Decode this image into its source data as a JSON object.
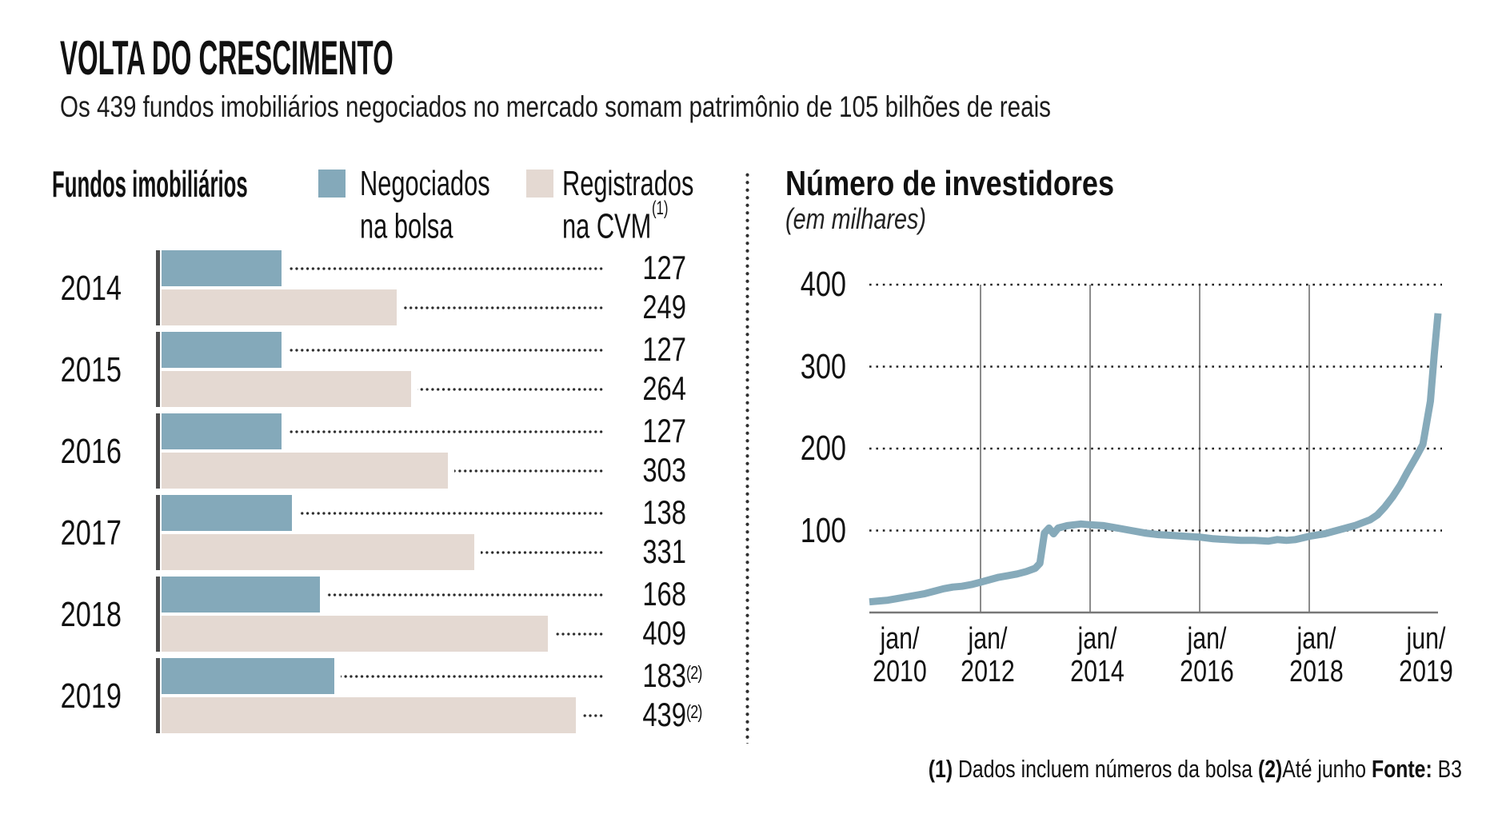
{
  "title": "VOLTA DO CRESCIMENTO",
  "subtitle": "Os 439 fundos imobiliários negociados no mercado somam patrimônio de 105 bilhões de reais",
  "left_panel": {
    "heading": "Fundos imobiliários",
    "legend": [
      {
        "line1": "Negociados",
        "line2": "na bolsa",
        "sup": "",
        "color": "#84a9ba"
      },
      {
        "line1": "Registrados",
        "line2": "na CVM",
        "sup": "(1)",
        "color": "#e4d9d2"
      }
    ]
  },
  "right_panel": {
    "heading": "Número de investidores",
    "unit_note": "(em milhares)",
    "y_tick_labels": [
      "400",
      "300",
      "200",
      "100"
    ]
  },
  "footnote": {
    "segments": [
      {
        "text": "(1)",
        "bold": true
      },
      {
        "text": " Dados incluem números da bolsa ",
        "bold": false
      },
      {
        "text": "(2)",
        "bold": true
      },
      {
        "text": "Até junho ",
        "bold": false
      },
      {
        "text": "Fonte:",
        "bold": true
      },
      {
        "text": " B3",
        "bold": false
      }
    ]
  },
  "chart_data": [
    {
      "type": "bar",
      "orientation": "horizontal",
      "title": "Fundos imobiliários",
      "categories": [
        "2014",
        "2015",
        "2016",
        "2017",
        "2018",
        "2019"
      ],
      "series": [
        {
          "name": "Negociados na bolsa",
          "color": "#84a9ba",
          "values": [
            127,
            127,
            127,
            138,
            168,
            183
          ],
          "superscripts": [
            "",
            "",
            "",
            "",
            "",
            "(2)"
          ]
        },
        {
          "name": "Registrados na CVM (1)",
          "color": "#e4d9d2",
          "values": [
            249,
            264,
            303,
            331,
            409,
            439
          ],
          "superscripts": [
            "",
            "",
            "",
            "",
            "",
            "(2)"
          ]
        }
      ],
      "xlim": [
        0,
        439
      ],
      "value_labels_shown": true,
      "grid": "dotted leader lines from bar end to value label"
    },
    {
      "type": "line",
      "title": "Número de investidores",
      "ylabel": "em milhares",
      "x_unit": "months since jan/2010",
      "x_tick_labels": [
        [
          "jan/",
          "2010"
        ],
        [
          "jan/",
          "2012"
        ],
        [
          "jan/",
          "2014"
        ],
        [
          "jan/",
          "2016"
        ],
        [
          "jan/",
          "2018"
        ],
        [
          "jun/",
          "2019"
        ]
      ],
      "x_gridline_months": [
        24,
        48,
        72,
        96
      ],
      "y_ticks": [
        100,
        200,
        300,
        400
      ],
      "ylim": [
        0,
        420
      ],
      "grid": "horizontal dotted black, vertical solid gray",
      "legend_position": "none",
      "series": [
        {
          "name": "Número de investidores (em milhares)",
          "color": "#86aaba",
          "points": [
            [
              0,
              13
            ],
            [
              2,
              14
            ],
            [
              4,
              15
            ],
            [
              6,
              17
            ],
            [
              8,
              19
            ],
            [
              10,
              21
            ],
            [
              12,
              23
            ],
            [
              14,
              26
            ],
            [
              16,
              29
            ],
            [
              18,
              31
            ],
            [
              20,
              32
            ],
            [
              22,
              34
            ],
            [
              24,
              37
            ],
            [
              26,
              40
            ],
            [
              28,
              43
            ],
            [
              30,
              45
            ],
            [
              32,
              47
            ],
            [
              34,
              50
            ],
            [
              36,
              54
            ],
            [
              37,
              60
            ],
            [
              38,
              97
            ],
            [
              39,
              103
            ],
            [
              40,
              96
            ],
            [
              41,
              103
            ],
            [
              43,
              106
            ],
            [
              46,
              108
            ],
            [
              48,
              107
            ],
            [
              51,
              106
            ],
            [
              54,
              103
            ],
            [
              57,
              100
            ],
            [
              60,
              97
            ],
            [
              63,
              95
            ],
            [
              66,
              94
            ],
            [
              69,
              93
            ],
            [
              72,
              92
            ],
            [
              75,
              90
            ],
            [
              78,
              89
            ],
            [
              81,
              88
            ],
            [
              84,
              88
            ],
            [
              87,
              87
            ],
            [
              89,
              89
            ],
            [
              91,
              88
            ],
            [
              93,
              89
            ],
            [
              96,
              93
            ],
            [
              98,
              96
            ],
            [
              100,
              101
            ],
            [
              102,
              106
            ],
            [
              104,
              113
            ],
            [
              105,
              119
            ],
            [
              106,
              129
            ],
            [
              107,
              141
            ],
            [
              108,
              155
            ],
            [
              109,
              172
            ],
            [
              110,
              188
            ],
            [
              111,
              205
            ],
            [
              112,
              258
            ],
            [
              112.5,
              315
            ],
            [
              113,
              365
            ]
          ]
        }
      ]
    }
  ]
}
